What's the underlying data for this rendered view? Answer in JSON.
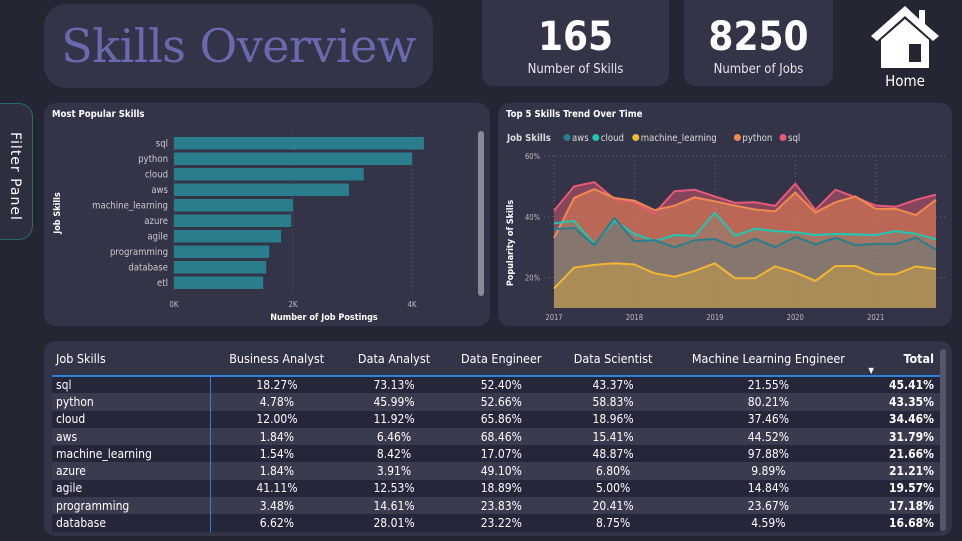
{
  "header": {
    "title": "Skills Overview",
    "kpis": [
      {
        "value": "165",
        "label": "Number of Skills"
      },
      {
        "value": "8250",
        "label": "Number of Jobs"
      }
    ],
    "home_label": "Home"
  },
  "filter_panel": {
    "label": "Filter Panel"
  },
  "colors": {
    "bar": "#2a7d8c",
    "aws": "#2a7d8c",
    "cloud": "#1fc8b4",
    "machine_learning": "#f2b632",
    "python": "#f08a50",
    "sql": "#e85a78"
  },
  "chart_data": [
    {
      "type": "bar",
      "title": "Most Popular Skills",
      "xlabel": "Number of Job Postings",
      "ylabel": "Job Skills",
      "categories": [
        "sql",
        "python",
        "cloud",
        "aws",
        "machine_learning",
        "azure",
        "agile",
        "programming",
        "database",
        "etl"
      ],
      "values": [
        4200,
        4000,
        3190,
        2940,
        2000,
        1970,
        1800,
        1600,
        1550,
        1500
      ],
      "xticks": [
        "0K",
        "2K",
        "4K"
      ],
      "xlim": [
        0,
        5000
      ],
      "grid": true
    },
    {
      "type": "area",
      "title": "Top 5 Skills Trend Over Time",
      "xlabel": "",
      "ylabel": "Popularity of Skills",
      "legend_title": "Job Skills",
      "legend_position": "top-left",
      "x": [
        "2017 Q1",
        "2017 Q2",
        "2017 Q3",
        "2017 Q4",
        "2018 Q1",
        "2018 Q2",
        "2018 Q3",
        "2018 Q4",
        "2019 Q1",
        "2019 Q2",
        "2019 Q3",
        "2019 Q4",
        "2020 Q1",
        "2020 Q2",
        "2020 Q3",
        "2020 Q4",
        "2021 Q1",
        "2021 Q2",
        "2021 Q3",
        "2021 Q4"
      ],
      "xticks": [
        "2017",
        "2018",
        "2019",
        "2020",
        "2021"
      ],
      "yticks": [
        "20%",
        "40%",
        "60%"
      ],
      "ylim": [
        10,
        60
      ],
      "grid": true,
      "series": [
        {
          "name": "sql",
          "values": [
            42,
            50,
            51.4,
            45.9,
            44.8,
            41.1,
            48.4,
            48.9,
            46.7,
            44.6,
            44.8,
            43.6,
            50.9,
            42.3,
            48.9,
            46.4,
            43.7,
            43.3,
            45.6,
            47.3
          ]
        },
        {
          "name": "python",
          "values": [
            33.1,
            46.2,
            49.1,
            46.2,
            45.3,
            42.2,
            43.7,
            46.4,
            45.1,
            43.7,
            42.4,
            41.8,
            48,
            41.4,
            44.8,
            46.7,
            42.6,
            42.6,
            40.6,
            45.6
          ]
        },
        {
          "name": "cloud",
          "values": [
            37.9,
            38.6,
            31.1,
            38.7,
            34.4,
            32,
            34,
            33.7,
            41.3,
            33.8,
            36.1,
            35.3,
            34.9,
            34,
            34.4,
            34.2,
            34,
            35.3,
            34.4,
            32.6
          ]
        },
        {
          "name": "aws",
          "values": [
            35.9,
            36.4,
            30.7,
            39.6,
            32,
            32.3,
            30,
            32.3,
            32.7,
            30,
            32.8,
            30,
            33.4,
            30.9,
            33.1,
            30.7,
            31.1,
            31.1,
            33.1,
            29.2
          ]
        },
        {
          "name": "machine_learning",
          "values": [
            16.4,
            23.3,
            24.2,
            24.7,
            24.3,
            21.4,
            20.3,
            22.2,
            24.7,
            19.8,
            19.8,
            23.7,
            21.7,
            18.9,
            23.8,
            23.8,
            21.1,
            21.1,
            23.7,
            22.8
          ]
        }
      ]
    }
  ],
  "table": {
    "columns": [
      "Job Skills",
      "Business Analyst",
      "Data Analyst",
      "Data Engineer",
      "Data Scientist",
      "Machine Learning Engineer",
      "Total"
    ],
    "sort_indicator": "▼",
    "rows": [
      [
        "sql",
        "18.27%",
        "73.13%",
        "52.40%",
        "43.37%",
        "21.55%",
        "45.41%"
      ],
      [
        "python",
        "4.78%",
        "45.99%",
        "52.66%",
        "58.83%",
        "80.21%",
        "43.35%"
      ],
      [
        "cloud",
        "12.00%",
        "11.92%",
        "65.86%",
        "18.96%",
        "37.46%",
        "34.46%"
      ],
      [
        "aws",
        "1.84%",
        "6.46%",
        "68.46%",
        "15.41%",
        "44.52%",
        "31.79%"
      ],
      [
        "machine_learning",
        "1.54%",
        "8.42%",
        "17.07%",
        "48.87%",
        "97.88%",
        "21.66%"
      ],
      [
        "azure",
        "1.84%",
        "3.91%",
        "49.10%",
        "6.80%",
        "9.89%",
        "21.21%"
      ],
      [
        "agile",
        "41.11%",
        "12.53%",
        "18.89%",
        "5.00%",
        "14.84%",
        "19.57%"
      ],
      [
        "programming",
        "3.48%",
        "14.61%",
        "23.83%",
        "20.41%",
        "23.67%",
        "17.18%"
      ],
      [
        "database",
        "6.62%",
        "28.01%",
        "23.22%",
        "8.75%",
        "4.59%",
        "16.68%"
      ]
    ]
  }
}
